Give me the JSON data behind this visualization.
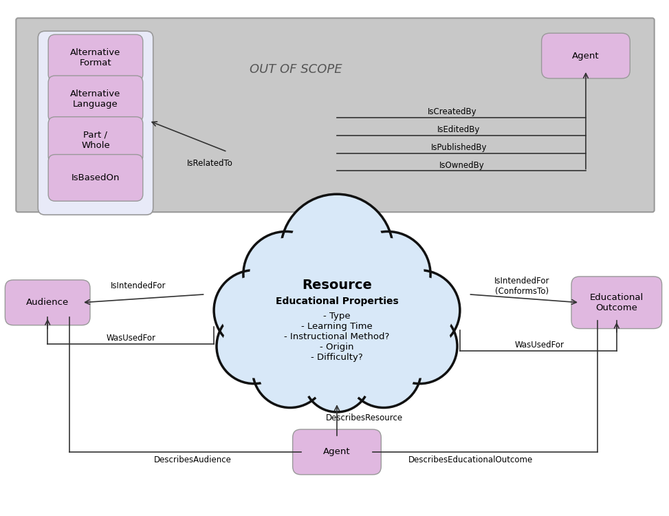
{
  "bg_color": "#ffffff",
  "gray_box_fill": "#c8c8c8",
  "gray_box_edge": "#999999",
  "out_of_scope_label": "OUT OF SCOPE",
  "cloud_fill": "#d8e8f8",
  "cloud_edge": "#111111",
  "node_fill": "#e0b8e0",
  "node_edge": "#999999",
  "group_fill": "#e8eaf8",
  "group_edge": "#999999",
  "line_color": "#333333",
  "resource_title": "Resource",
  "resource_subtitle": "Educational Properties",
  "resource_items": [
    "- Type",
    "- Learning Time",
    "- Instructional Method?",
    "- Origin",
    "- Difficulty?"
  ],
  "font_size_node": 9.5,
  "font_size_label": 8.5,
  "font_size_title": 14,
  "font_size_subtitle": 10,
  "font_size_items": 9.5,
  "font_size_oos": 13
}
